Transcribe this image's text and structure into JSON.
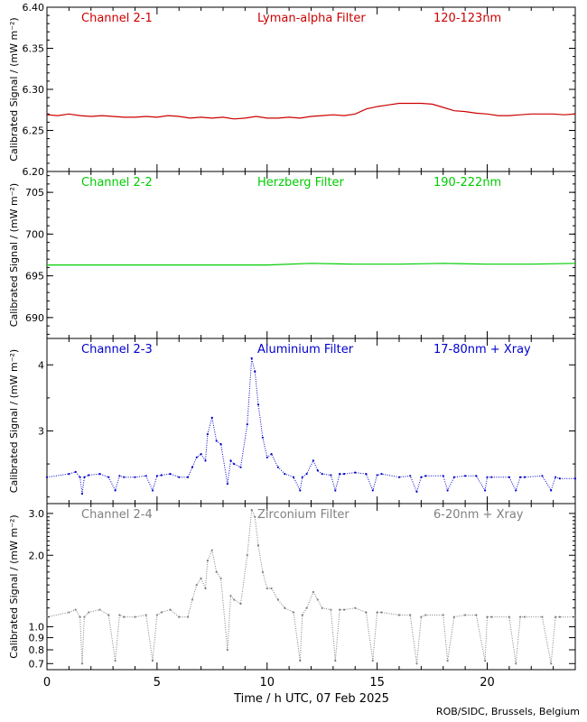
{
  "chart_data": [
    {
      "type": "line",
      "channel": "Channel 2-1",
      "filter": "Lyman-alpha Filter",
      "band": "120-123nm",
      "color": "#cc0000",
      "ylabel": "Calibrated Signal / (mW m⁻²)",
      "ylim": [
        6.2,
        6.4
      ],
      "yticks": [
        6.2,
        6.25,
        6.3,
        6.35,
        6.4
      ],
      "yticklabels": [
        "6.20",
        "6.25",
        "6.30",
        "6.35",
        "6.40"
      ],
      "xlim": [
        0,
        24
      ],
      "series": [
        {
          "x": [
            0,
            0.5,
            1,
            1.5,
            2,
            2.5,
            3,
            3.5,
            4,
            4.5,
            5,
            5.5,
            6,
            6.5,
            7,
            7.5,
            8,
            8.5,
            9,
            9.5,
            10,
            10.5,
            11,
            11.5,
            12,
            12.5,
            13,
            13.5,
            14,
            14.5,
            15,
            15.5,
            16,
            16.5,
            17,
            17.5,
            18,
            18.5,
            19,
            19.5,
            20,
            20.5,
            21,
            21.5,
            22,
            22.5,
            23,
            23.5,
            24
          ],
          "y": [
            6.269,
            6.268,
            6.27,
            6.268,
            6.267,
            6.268,
            6.267,
            6.266,
            6.266,
            6.267,
            6.266,
            6.268,
            6.267,
            6.265,
            6.266,
            6.265,
            6.266,
            6.264,
            6.265,
            6.267,
            6.265,
            6.265,
            6.266,
            6.265,
            6.267,
            6.268,
            6.269,
            6.268,
            6.27,
            6.276,
            6.279,
            6.281,
            6.283,
            6.283,
            6.283,
            6.282,
            6.278,
            6.274,
            6.273,
            6.271,
            6.27,
            6.268,
            6.268,
            6.269,
            6.27,
            6.27,
            6.27,
            6.269,
            6.27
          ]
        }
      ]
    },
    {
      "type": "line",
      "channel": "Channel 2-2",
      "filter": "Herzberg Filter",
      "band": "190-222nm",
      "color": "#00cc00",
      "ylabel": "Calibrated Signal / (mW m⁻²)",
      "ylim": [
        687.5,
        707.5
      ],
      "yticks": [
        690,
        695,
        700,
        705
      ],
      "yticklabels": [
        "690",
        "695",
        "700",
        "705"
      ],
      "xlim": [
        0,
        24
      ],
      "series": [
        {
          "x": [
            0,
            2,
            4,
            6,
            8,
            10,
            12,
            14,
            16,
            18,
            20,
            22,
            24
          ],
          "y": [
            696.3,
            696.3,
            696.3,
            696.3,
            696.3,
            696.3,
            696.5,
            696.4,
            696.4,
            696.5,
            696.4,
            696.4,
            696.5
          ]
        }
      ]
    },
    {
      "type": "scatter",
      "channel": "Channel 2-3",
      "filter": "Aluminium Filter",
      "band": "17-80nm + Xray",
      "color": "#0000cc",
      "ylabel": "Calibrated Signal / (mW m⁻²)",
      "ylim": [
        1.9,
        4.4
      ],
      "yticks": [
        3,
        4
      ],
      "yticklabels": [
        "3",
        "4"
      ],
      "minor_yticks": [
        2,
        2.5,
        3.5
      ],
      "xlim": [
        0,
        24
      ],
      "series": [
        {
          "x": [
            0,
            1,
            1.3,
            1.5,
            1.6,
            1.7,
            1.9,
            2.4,
            2.8,
            3.1,
            3.3,
            3.5,
            4,
            4.5,
            4.8,
            5,
            5.2,
            5.6,
            6,
            6.4,
            6.6,
            6.8,
            7,
            7.2,
            7.3,
            7.5,
            7.7,
            7.9,
            8.2,
            8.35,
            8.5,
            8.8,
            9.1,
            9.3,
            9.45,
            9.6,
            9.8,
            10,
            10.2,
            10.5,
            10.8,
            11.2,
            11.5,
            11.6,
            11.8,
            12.1,
            12.3,
            12.5,
            12.9,
            13.1,
            13.3,
            13.5,
            14,
            14.5,
            14.8,
            15,
            15.2,
            16,
            16.5,
            16.8,
            17,
            17.2,
            18,
            18.2,
            18.5,
            19,
            19.5,
            19.9,
            20,
            20.2,
            21,
            21.3,
            21.5,
            21.7,
            22.5,
            22.9,
            23.1,
            23.3,
            24
          ],
          "y": [
            2.3,
            2.35,
            2.38,
            2.3,
            2.05,
            2.3,
            2.33,
            2.35,
            2.3,
            2.1,
            2.32,
            2.3,
            2.3,
            2.32,
            2.1,
            2.32,
            2.33,
            2.35,
            2.3,
            2.3,
            2.45,
            2.6,
            2.65,
            2.55,
            2.95,
            3.2,
            2.85,
            2.8,
            2.2,
            2.55,
            2.5,
            2.45,
            3.1,
            4.1,
            3.9,
            3.4,
            2.9,
            2.6,
            2.65,
            2.45,
            2.35,
            2.3,
            2.1,
            2.3,
            2.35,
            2.55,
            2.4,
            2.35,
            2.33,
            2.1,
            2.35,
            2.35,
            2.37,
            2.35,
            2.1,
            2.33,
            2.35,
            2.3,
            2.32,
            2.08,
            2.3,
            2.32,
            2.32,
            2.1,
            2.3,
            2.32,
            2.32,
            2.1,
            2.3,
            2.3,
            2.3,
            2.1,
            2.3,
            2.3,
            2.32,
            2.1,
            2.3,
            2.28,
            2.28
          ]
        }
      ]
    },
    {
      "type": "scatter",
      "channel": "Channel 2-4",
      "filter": "Zirconium Filter",
      "band": "6-20nm + Xray",
      "color": "#808080",
      "ylabel": "Calibrated Signal / (mW m⁻²)",
      "ylim": [
        0.66,
        3.3
      ],
      "yscale": "log",
      "yticks": [
        0.7,
        0.8,
        0.9,
        1.0,
        2.0,
        3.0
      ],
      "yticklabels": [
        "0.7",
        "0.8",
        "0.9",
        "1.0",
        "2.0",
        "3.0"
      ],
      "xlim": [
        0,
        24
      ],
      "series": [
        {
          "x": [
            0,
            1,
            1.3,
            1.5,
            1.6,
            1.7,
            1.9,
            2.4,
            2.8,
            3.1,
            3.3,
            3.5,
            4,
            4.5,
            4.8,
            5,
            5.2,
            5.6,
            6,
            6.4,
            6.6,
            6.8,
            7,
            7.2,
            7.3,
            7.5,
            7.7,
            7.9,
            8.2,
            8.35,
            8.5,
            8.8,
            9.1,
            9.3,
            9.45,
            9.6,
            9.8,
            10,
            10.2,
            10.5,
            10.8,
            11.2,
            11.5,
            11.6,
            11.8,
            12.1,
            12.3,
            12.5,
            12.9,
            13.1,
            13.3,
            13.5,
            14,
            14.5,
            14.8,
            15,
            15.2,
            16,
            16.5,
            16.8,
            17,
            17.2,
            18,
            18.2,
            18.5,
            19,
            19.5,
            19.9,
            20,
            20.2,
            21,
            21.3,
            21.5,
            21.7,
            22.5,
            22.9,
            23.1,
            23.3,
            24
          ],
          "y": [
            1.1,
            1.15,
            1.18,
            1.1,
            0.7,
            1.1,
            1.15,
            1.18,
            1.12,
            0.72,
            1.12,
            1.1,
            1.1,
            1.12,
            0.72,
            1.12,
            1.15,
            1.18,
            1.1,
            1.1,
            1.3,
            1.5,
            1.6,
            1.45,
            1.9,
            2.1,
            1.7,
            1.6,
            0.8,
            1.35,
            1.3,
            1.25,
            2.0,
            3.1,
            2.9,
            2.2,
            1.7,
            1.45,
            1.45,
            1.3,
            1.2,
            1.15,
            0.72,
            1.12,
            1.2,
            1.4,
            1.3,
            1.2,
            1.18,
            0.72,
            1.18,
            1.18,
            1.2,
            1.15,
            0.72,
            1.15,
            1.15,
            1.12,
            1.12,
            0.7,
            1.1,
            1.12,
            1.12,
            0.72,
            1.1,
            1.12,
            1.12,
            0.72,
            1.1,
            1.1,
            1.1,
            0.7,
            1.1,
            1.1,
            1.1,
            0.7,
            1.1,
            1.1,
            1.1
          ]
        }
      ]
    }
  ],
  "x_axis": {
    "label": "Time / h UTC, 07 Feb 2025",
    "ticks": [
      0,
      5,
      10,
      15,
      20
    ],
    "ticklabels": [
      "0",
      "5",
      "10",
      "15",
      "20"
    ],
    "minor_step": 1
  },
  "credit": "ROB/SIDC, Brussels, Belgium"
}
